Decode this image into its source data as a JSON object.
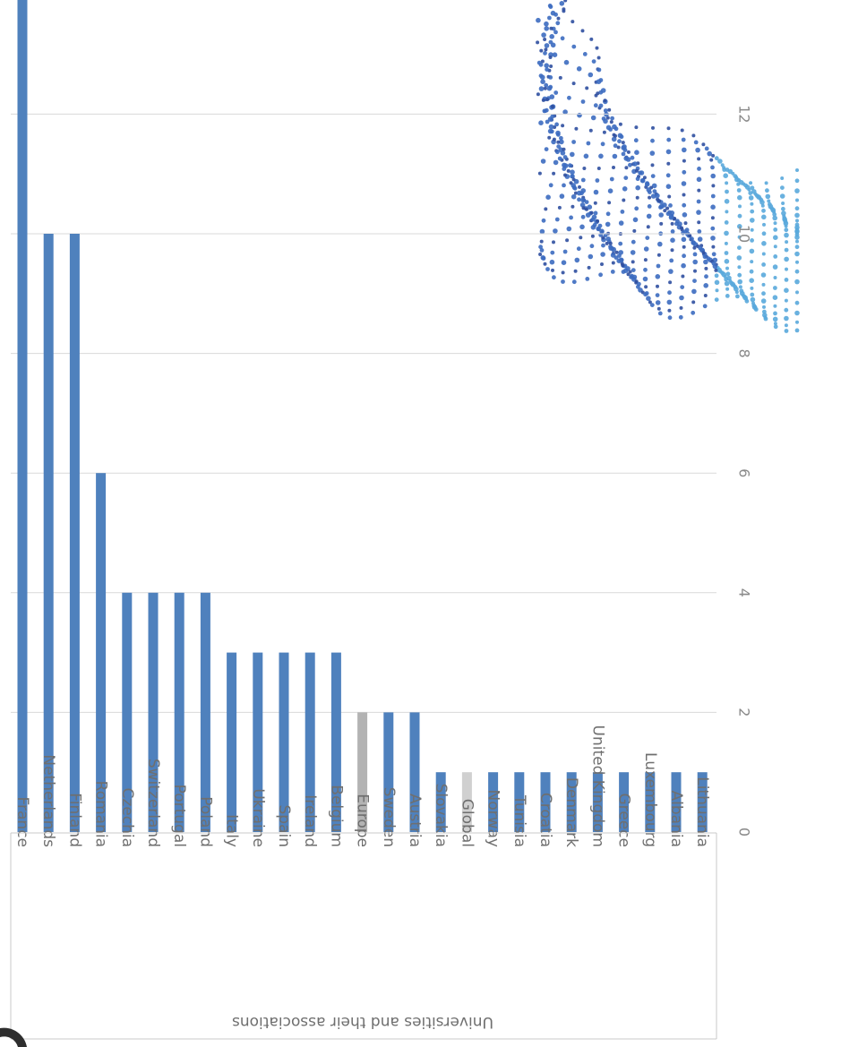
{
  "chart_data": {
    "type": "bar",
    "orientation": "horizontal-bars-rotated",
    "title": "",
    "xlabel": "",
    "ylabel": "",
    "group_label": "Universities and their associations",
    "ylim": [
      0,
      14
    ],
    "y_ticks": [
      0,
      2,
      4,
      6,
      8,
      10,
      12
    ],
    "grid": true,
    "categories": [
      "France",
      "Netherlands",
      "Finland",
      "Romania",
      "Czechia",
      "Switzerland",
      "Portugal",
      "Poland",
      "Italy",
      "Ukraine",
      "Spain",
      "Ireland",
      "Belgium",
      "Europe",
      "Sweden",
      "Austria",
      "Slovakia",
      "Global",
      "Norway",
      "Tunisia",
      "Croatia",
      "Denmark",
      "United Kingdom",
      "Greece",
      "Luxembourg",
      "Albania",
      "Lithuania"
    ],
    "values": [
      14,
      10,
      10,
      6,
      4,
      4,
      4,
      4,
      3,
      3,
      3,
      3,
      3,
      2,
      2,
      2,
      1,
      1,
      1,
      1,
      1,
      1,
      1,
      1,
      1,
      1,
      1
    ],
    "bar_colors": [
      "#4f81bd",
      "#4f81bd",
      "#4f81bd",
      "#4f81bd",
      "#4f81bd",
      "#4f81bd",
      "#4f81bd",
      "#4f81bd",
      "#4f81bd",
      "#4f81bd",
      "#4f81bd",
      "#4f81bd",
      "#4f81bd",
      "#b3b3b3",
      "#4f81bd",
      "#4f81bd",
      "#4f81bd",
      "#d0d0d0",
      "#4f81bd",
      "#4f81bd",
      "#4f81bd",
      "#4f81bd",
      "#4f81bd",
      "#4f81bd",
      "#4f81bd",
      "#4f81bd",
      "#4f81bd"
    ],
    "primary_color": "#4f81bd",
    "highlight_grey": "#b3b3b3",
    "gridline_color": "#d9d9d9"
  },
  "decoration": {
    "name": "dotted-globe-graphic",
    "colors": [
      "#2f4fa0",
      "#3c6cc0",
      "#59a9dc",
      "#7fd0ea"
    ]
  }
}
